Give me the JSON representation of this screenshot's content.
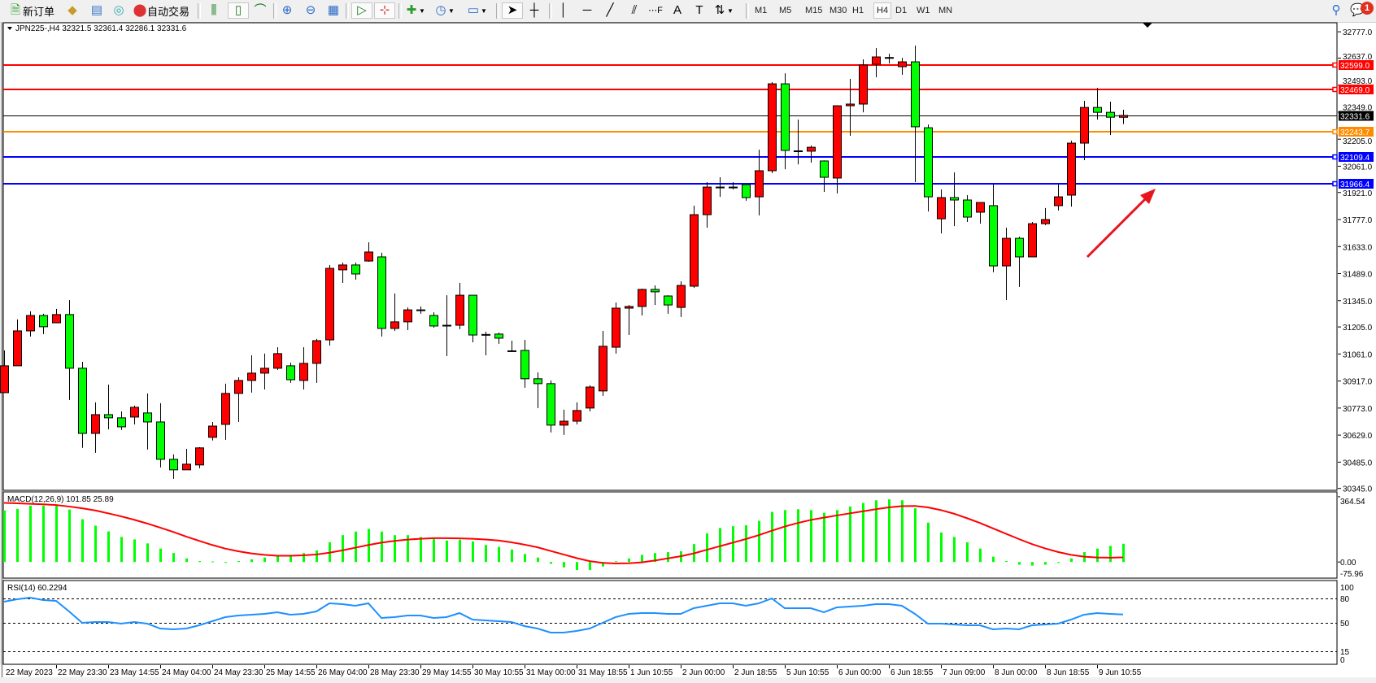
{
  "toolbar": {
    "new_order": "新订单",
    "auto_trading": "自动交易",
    "timeframes": [
      "M1",
      "M5",
      "M15",
      "M30",
      "H1",
      "H4",
      "D1",
      "W1",
      "MN"
    ],
    "active_timeframe": "H4",
    "notification_count": "1",
    "icons": [
      "new-order-icon",
      "gold-bars-icon",
      "terminal-icon",
      "signals-icon",
      "auto-trading-icon",
      "bar-chart-icon",
      "candlestick-icon",
      "line-chart-icon",
      "zoom-in-icon",
      "zoom-out-icon",
      "tile-windows-icon",
      "auto-scroll-icon",
      "chart-shift-icon",
      "new-chart-icon",
      "periods-icon",
      "templates-icon",
      "cursor-icon",
      "crosshair-icon",
      "vertical-line-icon",
      "horizontal-line-icon",
      "trendline-icon",
      "equidistant-channel-icon",
      "fibonacci-icon",
      "text-icon",
      "text-label-icon",
      "arrows-icon",
      "search-icon",
      "notification-icon"
    ]
  },
  "chart": {
    "header": "JPN225-,H4  32321.5 32361.4 32286.1 32331.6",
    "colors": {
      "bull": "#ff0000",
      "bear": "#00ff00",
      "bid_line": "#000000",
      "rsi": "#1e90ff",
      "macd_hist": "#00ff00",
      "macd_signal": "#ff0000",
      "arrow": "#e8141e"
    },
    "price_axis_labels": [
      "32777.0",
      "32637.0",
      "32493.0",
      "32349.0",
      "32205.0",
      "32061.0",
      "31921.0",
      "31777.0",
      "31633.0",
      "31489.0",
      "31345.0",
      "31205.0",
      "31061.0",
      "30917.0",
      "30773.0",
      "30629.0",
      "30485.0",
      "30345.0"
    ],
    "time_axis_labels": [
      "22 May 2023",
      "22 May 23:30",
      "23 May 14:55",
      "24 May 04:00",
      "24 May 23:30",
      "25 May 14:55",
      "26 May 04:00",
      "28 May 23:30",
      "29 May 14:55",
      "30 May 10:55",
      "31 May 00:00",
      "31 May 18:55",
      "1 Jun 10:55",
      "2 Jun 00:00",
      "2 Jun 18:55",
      "5 Jun 10:55",
      "6 Jun 00:00",
      "6 Jun 18:55",
      "7 Jun 09:00",
      "8 Jun 00:00",
      "8 Jun 18:55",
      "9 Jun 10:55"
    ],
    "levels": [
      {
        "price": "32599.0",
        "color": "#ff0000"
      },
      {
        "price": "32469.0",
        "color": "#ff0000"
      },
      {
        "price": "32243.7",
        "color": "#ff8c00"
      },
      {
        "price": "32109.4",
        "color": "#0000ff"
      },
      {
        "price": "31966.4",
        "color": "#0000ff"
      }
    ],
    "bid": "32331.6"
  },
  "chart_data": [
    {
      "type": "candlestick",
      "title": "JPN225-,H4",
      "ylim": [
        30335,
        32825
      ],
      "ohlc": [
        [
          30855,
          31080,
          30855,
          30998
        ],
        [
          30998,
          31245,
          30998,
          31184
        ],
        [
          31184,
          31288,
          31154,
          31266
        ],
        [
          31266,
          31275,
          31167,
          31206
        ],
        [
          31227,
          31301,
          31227,
          31271
        ],
        [
          31271,
          31348,
          30816,
          30985
        ],
        [
          30985,
          31019,
          30561,
          30638
        ],
        [
          30638,
          30803,
          30535,
          30738
        ],
        [
          30738,
          30898,
          30660,
          30721
        ],
        [
          30721,
          30755,
          30656,
          30673
        ],
        [
          30725,
          30786,
          30686,
          30777
        ],
        [
          30747,
          30851,
          30552,
          30699
        ],
        [
          30699,
          30799,
          30457,
          30500
        ],
        [
          30500,
          30526,
          30396,
          30444
        ],
        [
          30444,
          30556,
          30444,
          30474
        ],
        [
          30470,
          30565,
          30452,
          30561
        ],
        [
          30617,
          30699,
          30600,
          30677
        ],
        [
          30686,
          30903,
          30604,
          30851
        ],
        [
          30851,
          30937,
          30699,
          30920
        ],
        [
          30920,
          31054,
          30855,
          30959
        ],
        [
          30959,
          31063,
          30872,
          30985
        ],
        [
          30985,
          31097,
          30976,
          31063
        ],
        [
          30998,
          31015,
          30907,
          30924
        ],
        [
          30920,
          31097,
          30872,
          31011
        ],
        [
          31011,
          31141,
          30907,
          31132
        ],
        [
          31136,
          31535,
          31106,
          31517
        ],
        [
          31509,
          31548,
          31439,
          31535
        ],
        [
          31535,
          31548,
          31457,
          31487
        ],
        [
          31556,
          31656,
          31552,
          31604
        ],
        [
          31578,
          31600,
          31154,
          31197
        ],
        [
          31197,
          31383,
          31184,
          31232
        ],
        [
          31232,
          31309,
          31188,
          31296
        ],
        [
          31296,
          31314,
          31275,
          31288
        ],
        [
          31266,
          31283,
          31201,
          31210
        ],
        [
          31206,
          31374,
          31050,
          31214
        ],
        [
          31214,
          31439,
          31193,
          31374
        ],
        [
          31374,
          31374,
          31123,
          31162
        ],
        [
          31165,
          31180,
          31054,
          31160
        ],
        [
          31167,
          31175,
          31115,
          31145
        ],
        [
          31078,
          31132,
          31071,
          31076
        ],
        [
          31080,
          31136,
          30881,
          30929
        ],
        [
          30929,
          30963,
          30773,
          30903
        ],
        [
          30903,
          30920,
          30643,
          30682
        ],
        [
          30682,
          30764,
          30630,
          30703
        ],
        [
          30703,
          30803,
          30686,
          30760
        ],
        [
          30773,
          30894,
          30755,
          30885
        ],
        [
          30864,
          31184,
          30838,
          31102
        ],
        [
          31097,
          31335,
          31063,
          31305
        ],
        [
          31305,
          31322,
          31162,
          31314
        ],
        [
          31314,
          31409,
          31266,
          31405
        ],
        [
          31405,
          31426,
          31322,
          31392
        ],
        [
          31370,
          31374,
          31275,
          31322
        ],
        [
          31309,
          31448,
          31258,
          31426
        ],
        [
          31422,
          31851,
          31413,
          31803
        ],
        [
          31803,
          31976,
          31734,
          31950
        ],
        [
          31950,
          32002,
          31898,
          31948
        ],
        [
          31948,
          31976,
          31937,
          31950
        ],
        [
          31963,
          31965,
          31877,
          31894
        ],
        [
          31898,
          32149,
          31799,
          32037
        ],
        [
          32037,
          32509,
          32024,
          32500
        ],
        [
          32500,
          32556,
          32045,
          32145
        ],
        [
          32143,
          32309,
          32071,
          32141
        ],
        [
          32141,
          32171,
          32080,
          32162
        ],
        [
          32089,
          32092,
          31924,
          32002
        ],
        [
          31998,
          32385,
          31916,
          32383
        ],
        [
          32383,
          32526,
          32223,
          32392
        ],
        [
          32392,
          32630,
          32348,
          32600
        ],
        [
          32604,
          32690,
          32535,
          32643
        ],
        [
          32640,
          32660,
          32608,
          32638
        ],
        [
          32591,
          32638,
          32548,
          32617
        ],
        [
          32617,
          32703,
          31976,
          32271
        ],
        [
          32266,
          32283,
          31820,
          31898
        ],
        [
          31781,
          31937,
          31703,
          31894
        ],
        [
          31894,
          32028,
          31742,
          31881
        ],
        [
          31881,
          31907,
          31764,
          31790
        ],
        [
          31816,
          31870,
          31755,
          31868
        ],
        [
          31851,
          31963,
          31496,
          31530
        ],
        [
          31530,
          31734,
          31348,
          31677
        ],
        [
          31677,
          31686,
          31418,
          31578
        ],
        [
          31578,
          31764,
          31578,
          31755
        ],
        [
          31755,
          31838,
          31747,
          31777
        ],
        [
          31851,
          31963,
          31825,
          31898
        ],
        [
          31907,
          32197,
          31846,
          32184
        ],
        [
          32184,
          32409,
          32093,
          32374
        ],
        [
          32374,
          32478,
          32309,
          32348
        ],
        [
          32348,
          32405,
          32227,
          32322
        ],
        [
          32321.5,
          32361.4,
          32286.1,
          32331.6
        ]
      ]
    },
    {
      "type": "bar+line",
      "title": "MACD(12,26,9) 101.85 25.89",
      "ylim": [
        -90,
        391.5
      ],
      "axis_labels": [
        "364.54",
        "0.00",
        "-75.96"
      ],
      "histogram": [
        288,
        297,
        315,
        315,
        320,
        293,
        239,
        203,
        171,
        140,
        126,
        104,
        75,
        50,
        20,
        5,
        3,
        -2,
        5,
        15,
        25,
        35,
        40,
        50,
        65,
        110,
        150,
        170,
        185,
        170,
        150,
        150,
        140,
        130,
        120,
        125,
        115,
        95,
        85,
        70,
        45,
        25,
        -10,
        -30,
        -45,
        -45,
        -25,
        5,
        20,
        40,
        50,
        55,
        60,
        100,
        160,
        190,
        200,
        205,
        230,
        280,
        290,
        295,
        290,
        275,
        290,
        310,
        330,
        345,
        350,
        345,
        300,
        220,
        165,
        140,
        110,
        75,
        30,
        5,
        -15,
        -20,
        -15,
        -5,
        20,
        55,
        75,
        90,
        101.85
      ],
      "signal": [
        330,
        328,
        325,
        322,
        318,
        310,
        300,
        288,
        272,
        255,
        236,
        215,
        192,
        168,
        142,
        118,
        95,
        75,
        60,
        48,
        40,
        35,
        35,
        37,
        42,
        52,
        65,
        80,
        95,
        108,
        118,
        125,
        130,
        133,
        133,
        132,
        130,
        126,
        120,
        110,
        97,
        82,
        62,
        42,
        22,
        5,
        -5,
        -8,
        -7,
        -2,
        8,
        20,
        32,
        48,
        68,
        88,
        108,
        128,
        150,
        175,
        198,
        218,
        235,
        248,
        260,
        272,
        283,
        295,
        305,
        312,
        313,
        305,
        290,
        270,
        245,
        218,
        188,
        158,
        128,
        100,
        76,
        56,
        40,
        30,
        25,
        24,
        25.89
      ]
    },
    {
      "type": "line",
      "title": "RSI(14) 60.2294",
      "ylim": [
        0,
        100
      ],
      "axis_labels": [
        "100",
        "80",
        "50",
        "15",
        "0"
      ],
      "levels": [
        80,
        50,
        15
      ],
      "values": [
        76,
        79,
        81,
        78,
        77,
        64,
        50,
        51,
        51,
        49,
        51,
        49,
        43,
        42,
        43,
        47,
        52,
        57,
        59,
        60,
        61,
        63,
        60,
        61,
        64,
        74,
        73,
        71,
        74,
        56,
        57,
        59,
        59,
        56,
        57,
        62,
        54,
        53,
        52,
        51,
        46,
        43,
        38,
        38,
        40,
        43,
        50,
        57,
        61,
        62,
        62,
        61,
        61,
        68,
        71,
        74,
        74,
        71,
        74,
        80,
        68,
        68,
        68,
        63,
        69,
        70,
        71,
        73,
        73,
        71,
        61,
        49,
        49,
        48,
        47,
        47,
        42,
        43,
        42,
        47,
        48,
        49,
        54,
        60,
        62,
        61,
        60.2294
      ]
    }
  ]
}
